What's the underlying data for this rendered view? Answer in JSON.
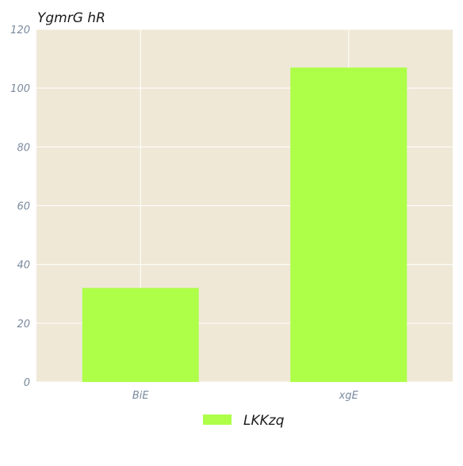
{
  "colors": {
    "plot_background": "#efe8d7",
    "grid": "#ffffff",
    "bar": "#adff48",
    "tick_label": "#7a8a9e",
    "title": "#1a1a1a"
  },
  "chart_data": {
    "type": "bar",
    "title": "YgmrG hR",
    "xlabel": "",
    "ylabel": "",
    "categories": [
      "BiE",
      "xgE"
    ],
    "series": [
      {
        "name": "LKKzq",
        "values": [
          32,
          107
        ]
      }
    ],
    "ylim": [
      0,
      120
    ],
    "yticks": [
      0,
      20,
      40,
      60,
      80,
      100,
      120
    ],
    "grid": true,
    "legend_position": "bottom-center"
  }
}
